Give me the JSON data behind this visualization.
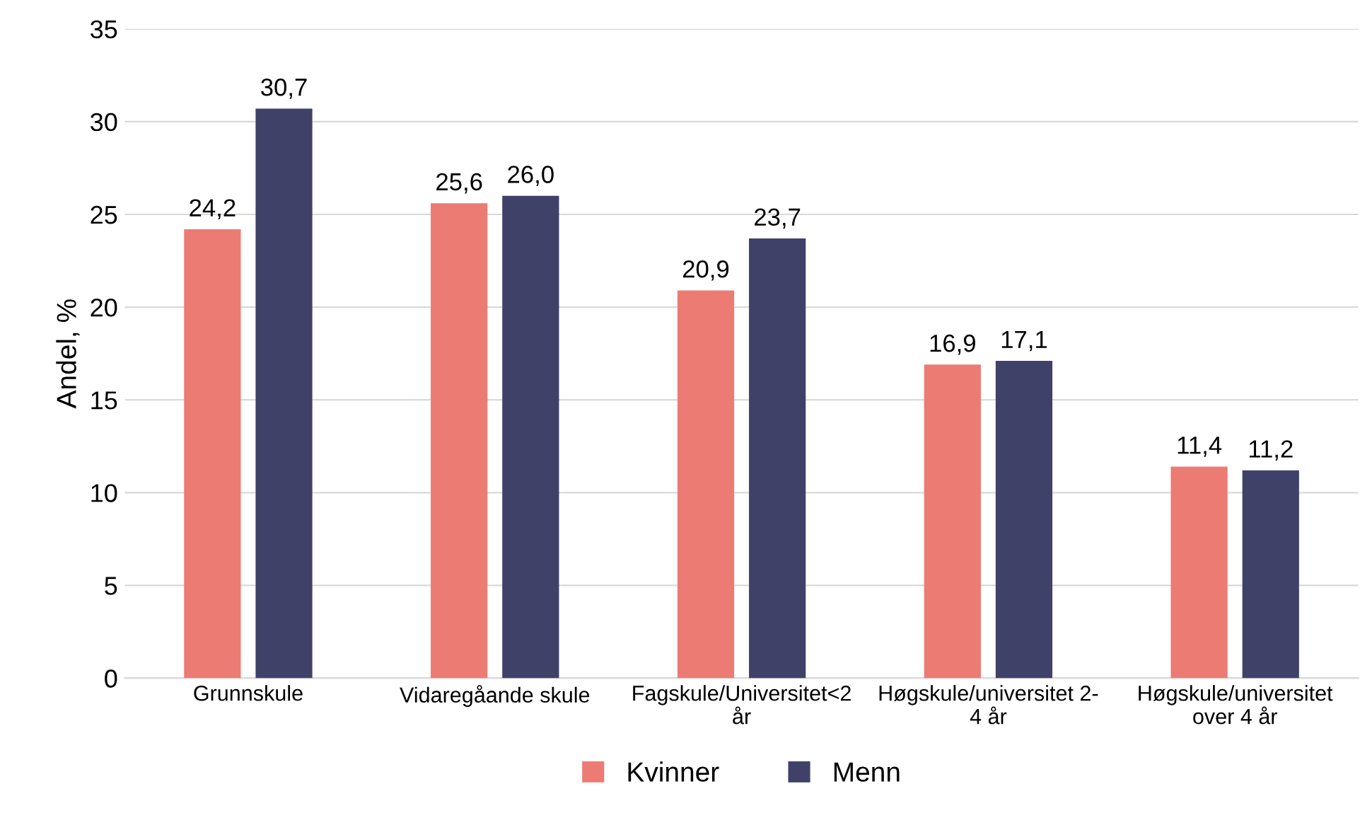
{
  "chart_data": {
    "type": "bar",
    "ylabel": "Andel, %",
    "categories": [
      "Grunnskule",
      "Vidaregåande skule",
      "Fagskule/Universitet<2\når",
      "Høgskule/universitet 2-\n4 år",
      "Høgskule/universitet\nover 4 år"
    ],
    "series": [
      {
        "name": "Kvinner",
        "color": "#ec7b73",
        "values": [
          24.2,
          25.6,
          20.9,
          16.9,
          11.4
        ],
        "value_labels": [
          "24,2",
          "25,6",
          "20,9",
          "16,9",
          "11,4"
        ]
      },
      {
        "name": "Menn",
        "color": "#3f4169",
        "values": [
          30.7,
          26.0,
          23.7,
          17.1,
          11.2
        ],
        "value_labels": [
          "30,7",
          "26,0",
          "23,7",
          "17,1",
          "11,2"
        ]
      }
    ],
    "ylim": [
      0,
      35
    ],
    "yticks": [
      0,
      5,
      10,
      15,
      20,
      25,
      30,
      35
    ],
    "grid": "y",
    "legend": "bottom"
  }
}
